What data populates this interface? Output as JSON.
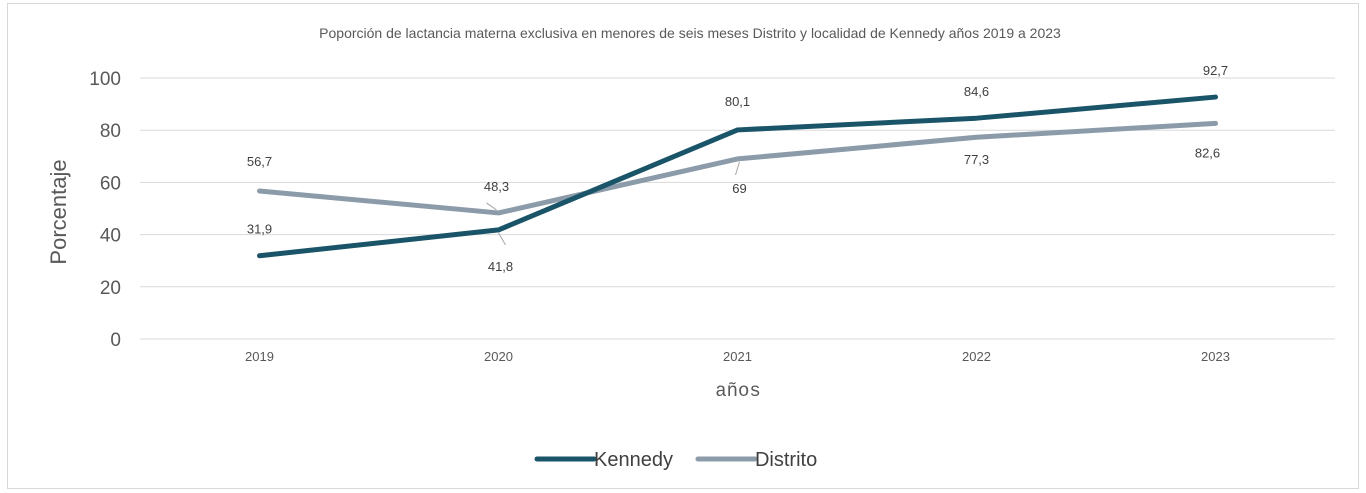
{
  "chart_data": {
    "type": "line",
    "title": "Poporción de lactancia materna exclusiva en menores de seis meses Distrito y localidad de Kennedy años 2019 a 2023",
    "xlabel": "años",
    "ylabel": "Porcentaje",
    "categories": [
      "2019",
      "2020",
      "2021",
      "2022",
      "2023"
    ],
    "ylim": [
      0,
      100
    ],
    "yticks": [
      0,
      20,
      40,
      60,
      80,
      100
    ],
    "grid": true,
    "legend_position": "bottom",
    "series": [
      {
        "name": "Kennedy",
        "color": "#1a5468",
        "values": [
          31.9,
          41.8,
          80.1,
          84.6,
          92.7
        ],
        "labels": [
          "31,9",
          "41,8",
          "80,1",
          "84,6",
          "92,7"
        ]
      },
      {
        "name": "Distrito",
        "color": "#8c9ba9",
        "values": [
          56.7,
          48.3,
          69,
          77.3,
          82.6
        ],
        "labels": [
          "56,7",
          "48,3",
          "69",
          "77,3",
          "82,6"
        ]
      }
    ]
  }
}
